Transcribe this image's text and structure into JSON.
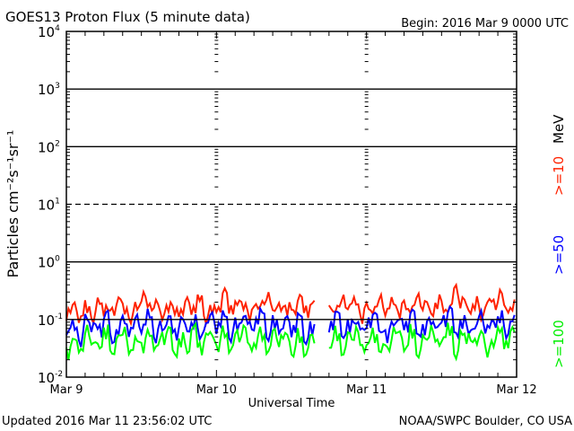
{
  "chart_data": {
    "type": "line",
    "title": "GOES13 Proton Flux (5 minute data)",
    "begin": "Begin: 2016 Mar 9 0000 UTC",
    "xlabel": "Universal Time",
    "ylabel": "Particles cm⁻²s⁻¹sr⁻¹",
    "x_ticks": [
      "Mar 9",
      "Mar 10",
      "Mar 11",
      "Mar 12"
    ],
    "x_unit": "hours since 2016 Mar 9 0000 UTC",
    "xlim": [
      0,
      72
    ],
    "yscale": "log",
    "ylim": [
      0.01,
      10000
    ],
    "y_ticks": [
      {
        "base": "10",
        "exp": "-2"
      },
      {
        "base": "10",
        "exp": "-1"
      },
      {
        "base": "10",
        "exp": "0"
      },
      {
        "base": "10",
        "exp": "1"
      },
      {
        "base": "10",
        "exp": "2"
      },
      {
        "base": "10",
        "exp": "3"
      },
      {
        "base": "10",
        "exp": "4"
      }
    ],
    "threshold_lines": [
      1000,
      100,
      10,
      1,
      0.1
    ],
    "series": [
      {
        "name": ">=10",
        "unit": "MeV",
        "color": "#ff2200",
        "values": [
          0.12,
          0.15,
          0.11,
          0.18,
          0.13,
          0.2,
          0.14,
          0.12,
          0.22,
          0.16,
          0.13,
          0.17,
          0.25,
          0.14,
          0.19,
          0.12,
          0.21,
          0.15,
          0.13,
          0.18,
          0.14,
          0.24,
          0.13,
          0.16,
          0.15,
          0.26,
          0.14,
          0.19,
          0.22,
          0.13,
          0.18,
          0.16,
          0.23,
          0.14,
          0.2,
          0.17,
          0.15,
          0.21,
          0.13,
          0.18,
          null,
          null,
          0.17,
          0.14,
          0.2,
          0.16,
          0.23,
          0.13,
          0.18,
          0.14,
          0.2,
          0.13,
          0.22,
          0.16,
          0.19,
          0.15,
          0.21,
          0.17,
          0.14,
          0.23,
          0.18,
          0.16,
          0.3,
          0.19,
          0.15,
          0.22,
          0.14,
          0.2,
          0.17,
          0.25,
          0.15,
          0.2
        ]
      },
      {
        "name": ">=50",
        "color": "#0000ff",
        "values": [
          0.06,
          0.09,
          0.05,
          0.11,
          0.07,
          0.06,
          0.12,
          0.05,
          0.08,
          0.1,
          0.06,
          0.09,
          0.07,
          0.13,
          0.06,
          0.08,
          0.1,
          0.05,
          0.09,
          0.07,
          0.11,
          0.06,
          0.08,
          0.1,
          0.07,
          0.12,
          0.06,
          0.09,
          0.11,
          0.07,
          0.08,
          0.13,
          0.06,
          0.1,
          0.07,
          0.09,
          0.06,
          0.11,
          0.05,
          0.08,
          null,
          null,
          0.07,
          0.12,
          0.06,
          0.09,
          0.1,
          0.06,
          0.08,
          0.11,
          0.07,
          0.06,
          0.1,
          0.09,
          0.07,
          0.12,
          0.06,
          0.08,
          0.11,
          0.07,
          0.09,
          0.13,
          0.06,
          0.1,
          0.08,
          0.07,
          0.11,
          0.06,
          0.09,
          0.12,
          0.07,
          0.1
        ]
      },
      {
        "name": ">=100",
        "color": "#00ff00",
        "values": [
          0.03,
          0.05,
          0.025,
          0.06,
          0.035,
          0.04,
          0.07,
          0.03,
          0.045,
          0.055,
          0.025,
          0.05,
          0.04,
          0.065,
          0.03,
          0.045,
          0.06,
          0.028,
          0.05,
          0.035,
          0.07,
          0.03,
          0.045,
          0.055,
          0.04,
          0.07,
          0.03,
          0.05,
          0.06,
          0.035,
          0.045,
          0.065,
          0.03,
          0.055,
          0.04,
          0.05,
          0.03,
          0.06,
          0.028,
          0.045,
          null,
          null,
          0.04,
          0.065,
          0.03,
          0.05,
          0.055,
          0.03,
          0.045,
          0.06,
          0.035,
          0.03,
          0.055,
          0.05,
          0.035,
          0.07,
          0.03,
          0.045,
          0.06,
          0.035,
          0.05,
          0.075,
          0.03,
          0.055,
          0.045,
          0.035,
          0.06,
          0.03,
          0.05,
          0.065,
          0.035,
          0.055
        ]
      }
    ]
  },
  "footer": {
    "updated": "Updated 2016 Mar 11 23:56:02 UTC",
    "credit": "NOAA/SWPC Boulder, CO USA"
  }
}
